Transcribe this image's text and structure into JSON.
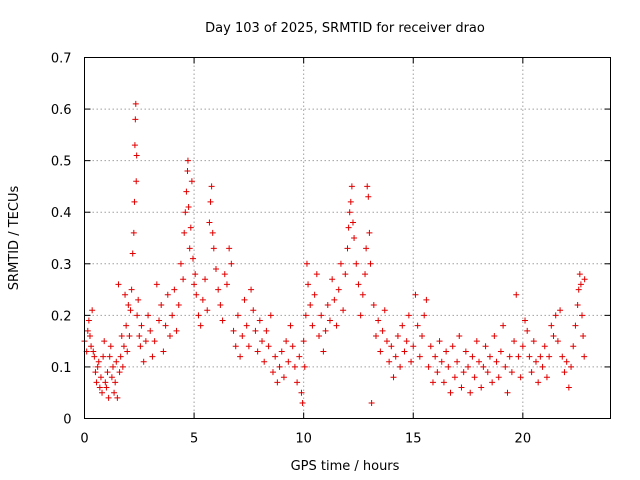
{
  "chart_data": {
    "type": "scatter",
    "title": "Day 103 of 2025, SRMTID for receiver drao",
    "xlabel": "GPS time / hours",
    "ylabel": "SRMTID / TECUs",
    "xlim": [
      0,
      24
    ],
    "ylim": [
      0,
      0.7
    ],
    "xticks": [
      "0",
      "5",
      "10",
      "15",
      "20"
    ],
    "yticks": [
      "0",
      "0.1",
      "0.2",
      "0.3",
      "0.4",
      "0.5",
      "0.6",
      "0.7"
    ],
    "grid": true,
    "marker": "plus",
    "color": "#e00000",
    "series": [
      {
        "name": "SRMTID",
        "points": [
          [
            0.0,
            0.15
          ],
          [
            0.1,
            0.13
          ],
          [
            0.15,
            0.17
          ],
          [
            0.2,
            0.19
          ],
          [
            0.25,
            0.16
          ],
          [
            0.3,
            0.14
          ],
          [
            0.35,
            0.21
          ],
          [
            0.4,
            0.13
          ],
          [
            0.45,
            0.12
          ],
          [
            0.5,
            0.09
          ],
          [
            0.55,
            0.07
          ],
          [
            0.6,
            0.1
          ],
          [
            0.65,
            0.11
          ],
          [
            0.7,
            0.06
          ],
          [
            0.75,
            0.08
          ],
          [
            0.8,
            0.05
          ],
          [
            0.85,
            0.12
          ],
          [
            0.9,
            0.15
          ],
          [
            0.95,
            0.07
          ],
          [
            1.0,
            0.06
          ],
          [
            1.05,
            0.09
          ],
          [
            1.1,
            0.04
          ],
          [
            1.15,
            0.12
          ],
          [
            1.2,
            0.14
          ],
          [
            1.25,
            0.08
          ],
          [
            1.3,
            0.1
          ],
          [
            1.35,
            0.05
          ],
          [
            1.4,
            0.07
          ],
          [
            1.45,
            0.11
          ],
          [
            1.5,
            0.04
          ],
          [
            1.55,
            0.26
          ],
          [
            1.6,
            0.09
          ],
          [
            1.65,
            0.12
          ],
          [
            1.7,
            0.16
          ],
          [
            1.75,
            0.1
          ],
          [
            1.8,
            0.14
          ],
          [
            1.85,
            0.24
          ],
          [
            1.9,
            0.18
          ],
          [
            1.95,
            0.13
          ],
          [
            2.0,
            0.22
          ],
          [
            2.05,
            0.16
          ],
          [
            2.1,
            0.21
          ],
          [
            2.15,
            0.25
          ],
          [
            2.2,
            0.32
          ],
          [
            2.25,
            0.36
          ],
          [
            2.28,
            0.42
          ],
          [
            2.3,
            0.53
          ],
          [
            2.32,
            0.58
          ],
          [
            2.34,
            0.61
          ],
          [
            2.36,
            0.46
          ],
          [
            2.38,
            0.51
          ],
          [
            2.4,
            0.2
          ],
          [
            2.45,
            0.23
          ],
          [
            2.5,
            0.16
          ],
          [
            2.55,
            0.14
          ],
          [
            2.6,
            0.18
          ],
          [
            2.7,
            0.11
          ],
          [
            2.8,
            0.15
          ],
          [
            2.9,
            0.2
          ],
          [
            3.0,
            0.17
          ],
          [
            3.1,
            0.12
          ],
          [
            3.2,
            0.15
          ],
          [
            3.3,
            0.26
          ],
          [
            3.4,
            0.19
          ],
          [
            3.5,
            0.22
          ],
          [
            3.6,
            0.13
          ],
          [
            3.7,
            0.18
          ],
          [
            3.8,
            0.24
          ],
          [
            3.9,
            0.16
          ],
          [
            4.0,
            0.2
          ],
          [
            4.1,
            0.25
          ],
          [
            4.2,
            0.17
          ],
          [
            4.3,
            0.22
          ],
          [
            4.4,
            0.3
          ],
          [
            4.5,
            0.27
          ],
          [
            4.55,
            0.36
          ],
          [
            4.6,
            0.4
          ],
          [
            4.65,
            0.44
          ],
          [
            4.7,
            0.48
          ],
          [
            4.72,
            0.5
          ],
          [
            4.75,
            0.41
          ],
          [
            4.8,
            0.33
          ],
          [
            4.85,
            0.37
          ],
          [
            4.9,
            0.46
          ],
          [
            4.95,
            0.31
          ],
          [
            5.0,
            0.26
          ],
          [
            5.05,
            0.28
          ],
          [
            5.1,
            0.24
          ],
          [
            5.2,
            0.2
          ],
          [
            5.3,
            0.18
          ],
          [
            5.4,
            0.23
          ],
          [
            5.5,
            0.27
          ],
          [
            5.6,
            0.21
          ],
          [
            5.7,
            0.38
          ],
          [
            5.75,
            0.42
          ],
          [
            5.8,
            0.45
          ],
          [
            5.85,
            0.36
          ],
          [
            5.9,
            0.33
          ],
          [
            6.0,
            0.29
          ],
          [
            6.1,
            0.25
          ],
          [
            6.2,
            0.22
          ],
          [
            6.3,
            0.19
          ],
          [
            6.4,
            0.28
          ],
          [
            6.5,
            0.26
          ],
          [
            6.6,
            0.33
          ],
          [
            6.7,
            0.3
          ],
          [
            6.8,
            0.17
          ],
          [
            6.9,
            0.14
          ],
          [
            7.0,
            0.2
          ],
          [
            7.1,
            0.12
          ],
          [
            7.2,
            0.16
          ],
          [
            7.3,
            0.23
          ],
          [
            7.4,
            0.18
          ],
          [
            7.5,
            0.14
          ],
          [
            7.6,
            0.25
          ],
          [
            7.7,
            0.21
          ],
          [
            7.8,
            0.17
          ],
          [
            7.9,
            0.13
          ],
          [
            8.0,
            0.19
          ],
          [
            8.1,
            0.15
          ],
          [
            8.2,
            0.11
          ],
          [
            8.3,
            0.17
          ],
          [
            8.4,
            0.14
          ],
          [
            8.5,
            0.2
          ],
          [
            8.6,
            0.09
          ],
          [
            8.7,
            0.12
          ],
          [
            8.8,
            0.07
          ],
          [
            8.9,
            0.1
          ],
          [
            9.0,
            0.13
          ],
          [
            9.1,
            0.08
          ],
          [
            9.2,
            0.15
          ],
          [
            9.3,
            0.11
          ],
          [
            9.4,
            0.18
          ],
          [
            9.5,
            0.14
          ],
          [
            9.6,
            0.1
          ],
          [
            9.7,
            0.07
          ],
          [
            9.8,
            0.12
          ],
          [
            9.9,
            0.05
          ],
          [
            9.95,
            0.03
          ],
          [
            10.0,
            0.15
          ],
          [
            10.05,
            0.1
          ],
          [
            10.1,
            0.2
          ],
          [
            10.15,
            0.3
          ],
          [
            10.2,
            0.26
          ],
          [
            10.3,
            0.22
          ],
          [
            10.4,
            0.18
          ],
          [
            10.5,
            0.24
          ],
          [
            10.6,
            0.28
          ],
          [
            10.7,
            0.16
          ],
          [
            10.8,
            0.2
          ],
          [
            10.9,
            0.13
          ],
          [
            11.0,
            0.17
          ],
          [
            11.1,
            0.22
          ],
          [
            11.2,
            0.19
          ],
          [
            11.3,
            0.27
          ],
          [
            11.4,
            0.23
          ],
          [
            11.5,
            0.18
          ],
          [
            11.6,
            0.25
          ],
          [
            11.7,
            0.3
          ],
          [
            11.8,
            0.21
          ],
          [
            11.9,
            0.28
          ],
          [
            12.0,
            0.33
          ],
          [
            12.05,
            0.37
          ],
          [
            12.1,
            0.4
          ],
          [
            12.15,
            0.42
          ],
          [
            12.2,
            0.45
          ],
          [
            12.25,
            0.38
          ],
          [
            12.3,
            0.35
          ],
          [
            12.4,
            0.3
          ],
          [
            12.5,
            0.26
          ],
          [
            12.6,
            0.2
          ],
          [
            12.7,
            0.24
          ],
          [
            12.8,
            0.28
          ],
          [
            12.85,
            0.33
          ],
          [
            12.9,
            0.45
          ],
          [
            12.95,
            0.43
          ],
          [
            13.0,
            0.36
          ],
          [
            13.05,
            0.3
          ],
          [
            13.1,
            0.03
          ],
          [
            13.2,
            0.22
          ],
          [
            13.3,
            0.16
          ],
          [
            13.4,
            0.19
          ],
          [
            13.5,
            0.13
          ],
          [
            13.6,
            0.17
          ],
          [
            13.7,
            0.21
          ],
          [
            13.8,
            0.15
          ],
          [
            13.9,
            0.11
          ],
          [
            14.0,
            0.14
          ],
          [
            14.1,
            0.08
          ],
          [
            14.2,
            0.12
          ],
          [
            14.3,
            0.16
          ],
          [
            14.4,
            0.1
          ],
          [
            14.5,
            0.18
          ],
          [
            14.6,
            0.13
          ],
          [
            14.7,
            0.15
          ],
          [
            14.8,
            0.2
          ],
          [
            14.9,
            0.11
          ],
          [
            15.0,
            0.14
          ],
          [
            15.1,
            0.24
          ],
          [
            15.2,
            0.18
          ],
          [
            15.3,
            0.12
          ],
          [
            15.4,
            0.16
          ],
          [
            15.5,
            0.2
          ],
          [
            15.6,
            0.23
          ],
          [
            15.7,
            0.1
          ],
          [
            15.8,
            0.14
          ],
          [
            15.9,
            0.07
          ],
          [
            16.0,
            0.12
          ],
          [
            16.1,
            0.09
          ],
          [
            16.2,
            0.15
          ],
          [
            16.3,
            0.11
          ],
          [
            16.4,
            0.07
          ],
          [
            16.5,
            0.13
          ],
          [
            16.6,
            0.1
          ],
          [
            16.7,
            0.05
          ],
          [
            16.8,
            0.14
          ],
          [
            16.9,
            0.08
          ],
          [
            17.0,
            0.11
          ],
          [
            17.1,
            0.16
          ],
          [
            17.2,
            0.06
          ],
          [
            17.3,
            0.09
          ],
          [
            17.4,
            0.13
          ],
          [
            17.5,
            0.1
          ],
          [
            17.6,
            0.05
          ],
          [
            17.7,
            0.12
          ],
          [
            17.8,
            0.08
          ],
          [
            17.9,
            0.15
          ],
          [
            18.0,
            0.11
          ],
          [
            18.1,
            0.06
          ],
          [
            18.2,
            0.1
          ],
          [
            18.3,
            0.14
          ],
          [
            18.4,
            0.09
          ],
          [
            18.5,
            0.12
          ],
          [
            18.6,
            0.07
          ],
          [
            18.7,
            0.16
          ],
          [
            18.8,
            0.11
          ],
          [
            18.9,
            0.08
          ],
          [
            19.0,
            0.13
          ],
          [
            19.1,
            0.18
          ],
          [
            19.2,
            0.1
          ],
          [
            19.3,
            0.05
          ],
          [
            19.4,
            0.12
          ],
          [
            19.5,
            0.09
          ],
          [
            19.6,
            0.15
          ],
          [
            19.7,
            0.24
          ],
          [
            19.8,
            0.12
          ],
          [
            19.9,
            0.08
          ],
          [
            20.0,
            0.14
          ],
          [
            20.1,
            0.19
          ],
          [
            20.2,
            0.17
          ],
          [
            20.3,
            0.12
          ],
          [
            20.4,
            0.09
          ],
          [
            20.5,
            0.15
          ],
          [
            20.6,
            0.11
          ],
          [
            20.7,
            0.07
          ],
          [
            20.8,
            0.12
          ],
          [
            20.9,
            0.1
          ],
          [
            21.0,
            0.14
          ],
          [
            21.1,
            0.08
          ],
          [
            21.2,
            0.12
          ],
          [
            21.3,
            0.18
          ],
          [
            21.4,
            0.16
          ],
          [
            21.5,
            0.2
          ],
          [
            21.6,
            0.15
          ],
          [
            21.7,
            0.21
          ],
          [
            21.8,
            0.12
          ],
          [
            21.9,
            0.09
          ],
          [
            22.0,
            0.11
          ],
          [
            22.1,
            0.06
          ],
          [
            22.2,
            0.1
          ],
          [
            22.3,
            0.14
          ],
          [
            22.4,
            0.18
          ],
          [
            22.5,
            0.22
          ],
          [
            22.55,
            0.25
          ],
          [
            22.6,
            0.28
          ],
          [
            22.65,
            0.26
          ],
          [
            22.7,
            0.2
          ],
          [
            22.75,
            0.16
          ],
          [
            22.8,
            0.12
          ],
          [
            22.82,
            0.27
          ]
        ]
      }
    ]
  }
}
